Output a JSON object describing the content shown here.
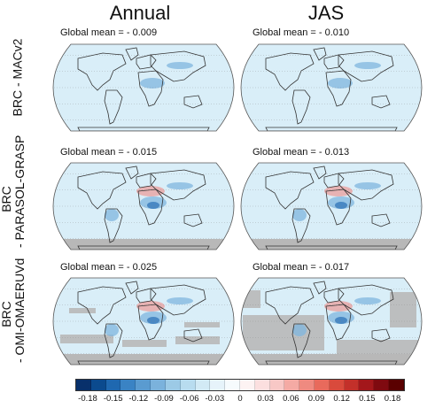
{
  "columns": [
    "Annual",
    "JAS"
  ],
  "rows": [
    {
      "label_line1": "BRC - MACv2",
      "label_line2": ""
    },
    {
      "label_line1": "BRC",
      "label_line2": "- PARASOL-GRASP"
    },
    {
      "label_line1": "BRC",
      "label_line2": "- OMI-OMAERUVd"
    }
  ],
  "panels": [
    {
      "global_mean": "Global mean = - 0.009",
      "style": "light"
    },
    {
      "global_mean": "Global mean = - 0.010",
      "style": "light"
    },
    {
      "global_mean": "Global mean = - 0.015",
      "style": "mid"
    },
    {
      "global_mean": "Global mean = - 0.013",
      "style": "mid"
    },
    {
      "global_mean": "Global mean = - 0.025",
      "style": "grey"
    },
    {
      "global_mean": "Global mean = - 0.017",
      "style": "greyheavy"
    }
  ],
  "colorbar": {
    "ticks": [
      "-0.18",
      "-0.15",
      "-0.12",
      "-0.09",
      "-0.06",
      "-0.03",
      "0",
      "0.03",
      "0.06",
      "0.09",
      "0.12",
      "0.15",
      "0.18"
    ],
    "colors": [
      "#08306b",
      "#0b4a8e",
      "#1f68b0",
      "#3a83c4",
      "#5a9bd0",
      "#7bb2dc",
      "#9ccae6",
      "#b8dcef",
      "#d2eaf5",
      "#e6f3fa",
      "#f6fbfd",
      "#fdf3f3",
      "#fbdfdf",
      "#f8c8c6",
      "#f4aaa4",
      "#ef8a80",
      "#e86a5c",
      "#d94a3c",
      "#c3302a",
      "#a3171b",
      "#7f0a10",
      "#5a0000"
    ]
  },
  "colors": {
    "ocean": "#d9eef8",
    "land_outline": "#333333",
    "grey_mask": "#b8b8b8",
    "blue_mid": "#7fb6df",
    "blue_dark": "#2f74b8",
    "red": "#f08a86"
  }
}
